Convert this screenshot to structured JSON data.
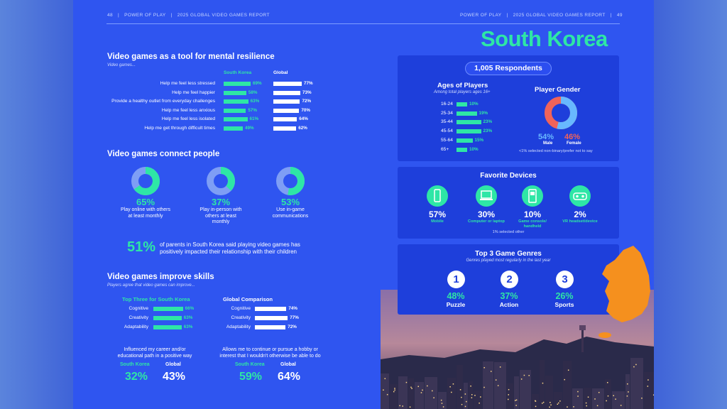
{
  "header": {
    "left_page": "48",
    "left_brand": "POWER OF PLAY",
    "left_report": "2025 GLOBAL VIDEO GAMES REPORT",
    "right_brand": "POWER OF PLAY",
    "right_report": "2025 GLOBAL VIDEO GAMES REPORT",
    "right_page": "49"
  },
  "country_title": "South Korea",
  "colors": {
    "teal": "#2ee6a6",
    "page_blue": "#2f55f0",
    "card_blue": "#1e3fdb",
    "orange": "#f5901e",
    "coral": "#f0635a",
    "light_blue": "#68b8ff"
  },
  "resilience": {
    "title": "Video games as a tool for mental resilience",
    "subtitle": "Video games...",
    "col_country": "South Korea",
    "col_global": "Global",
    "rows": [
      {
        "label": "Help me feel less stressed",
        "country": "69%",
        "global": "77%",
        "country_value": 69,
        "global_value": 77
      },
      {
        "label": "Help me feel happier",
        "country": "58%",
        "global": "73%",
        "country_value": 58,
        "global_value": 73
      },
      {
        "label": "Provide a healthy outlet from everyday challenges",
        "country": "63%",
        "global": "72%",
        "country_value": 63,
        "global_value": 72
      },
      {
        "label": "Help me feel less anxious",
        "country": "57%",
        "global": "70%",
        "country_value": 57,
        "global_value": 70
      },
      {
        "label": "Help me feel less isolated",
        "country": "61%",
        "global": "64%",
        "country_value": 61,
        "global_value": 64
      },
      {
        "label": "Help me get through difficult times",
        "country": "49%",
        "global": "62%",
        "country_value": 49,
        "global_value": 62
      }
    ]
  },
  "connect": {
    "title": "Video games connect people",
    "items": [
      {
        "pct": "65%",
        "value": 65,
        "label1": "Play online with others",
        "label2": "at least monthly",
        "label3": ""
      },
      {
        "pct": "37%",
        "value": 37,
        "label1": "Play in-person with",
        "label2": "others at least",
        "label3": "monthly"
      },
      {
        "pct": "53%",
        "value": 53,
        "label1": "Use in-game",
        "label2": "communications",
        "label3": ""
      }
    ],
    "parents_pct": "51%",
    "parents_text1": "of parents in South Korea said playing video games has",
    "parents_text2": "positively impacted their relationship with their children"
  },
  "skills": {
    "title": "Video games improve skills",
    "subtitle": "Players agree that video games can improve...",
    "top3_title": "Top Three for South Korea",
    "global_title": "Global Comparison",
    "top3": [
      {
        "label": "Cognitive",
        "pct": "66%",
        "value": 66
      },
      {
        "label": "Creativity",
        "pct": "63%",
        "value": 63
      },
      {
        "label": "Adaptability",
        "pct": "63%",
        "value": 63
      }
    ],
    "global": [
      {
        "label": "Cognitive",
        "pct": "74%",
        "value": 74
      },
      {
        "label": "Creativity",
        "pct": "77%",
        "value": 77
      },
      {
        "label": "Adaptability",
        "pct": "72%",
        "value": 72
      }
    ],
    "career": {
      "text1": "Influenced my career and/or",
      "text2": "educational path in a positive way",
      "country_label": "South Korea",
      "global_label": "Global",
      "country_pct": "32%",
      "global_pct": "43%"
    },
    "hobby": {
      "text1": "Allows me to continue or pursue a hobby or",
      "text2": "interest that I wouldn't otherwise be able to do",
      "country_label": "South Korea",
      "global_label": "Global",
      "country_pct": "59%",
      "global_pct": "64%"
    }
  },
  "respondents": {
    "pill": "1,005 Respondents",
    "ages_title": "Ages of Players",
    "ages_sub": "Among total players ages 16+",
    "ages": [
      {
        "range": "16-24",
        "pct": "10%",
        "value": 10
      },
      {
        "range": "25-34",
        "pct": "19%",
        "value": 19
      },
      {
        "range": "35-44",
        "pct": "23%",
        "value": 23
      },
      {
        "range": "45-54",
        "pct": "23%",
        "value": 23
      },
      {
        "range": "55-64",
        "pct": "15%",
        "value": 15
      },
      {
        "range": "65+",
        "pct": "10%",
        "value": 10
      }
    ],
    "gender_title": "Player Gender",
    "male_pct": "54%",
    "male_label": "Male",
    "male_value": 54,
    "female_pct": "46%",
    "female_label": "Female",
    "female_value": 46,
    "gender_note": "<1% selected non-binary/prefer not to say"
  },
  "devices": {
    "title": "Favorite Devices",
    "items": [
      {
        "icon": "phone-icon",
        "pct": "57%",
        "label1": "Mobile",
        "label2": ""
      },
      {
        "icon": "laptop-icon",
        "pct": "30%",
        "label1": "Computer or laptop",
        "label2": ""
      },
      {
        "icon": "console-icon",
        "pct": "10%",
        "label1": "Game console/",
        "label2": "handheld"
      },
      {
        "icon": "vr-headset-icon",
        "pct": "2%",
        "label1": "VR headset/device",
        "label2": ""
      }
    ],
    "note": "1% selected other"
  },
  "genres": {
    "title": "Top 3 Game Genres",
    "sub": "Genres played most regularly in the last year",
    "items": [
      {
        "rank": "1",
        "pct": "48%",
        "name": "Puzzle"
      },
      {
        "rank": "2",
        "pct": "37%",
        "name": "Action"
      },
      {
        "rank": "3",
        "pct": "26%",
        "name": "Sports"
      }
    ]
  }
}
